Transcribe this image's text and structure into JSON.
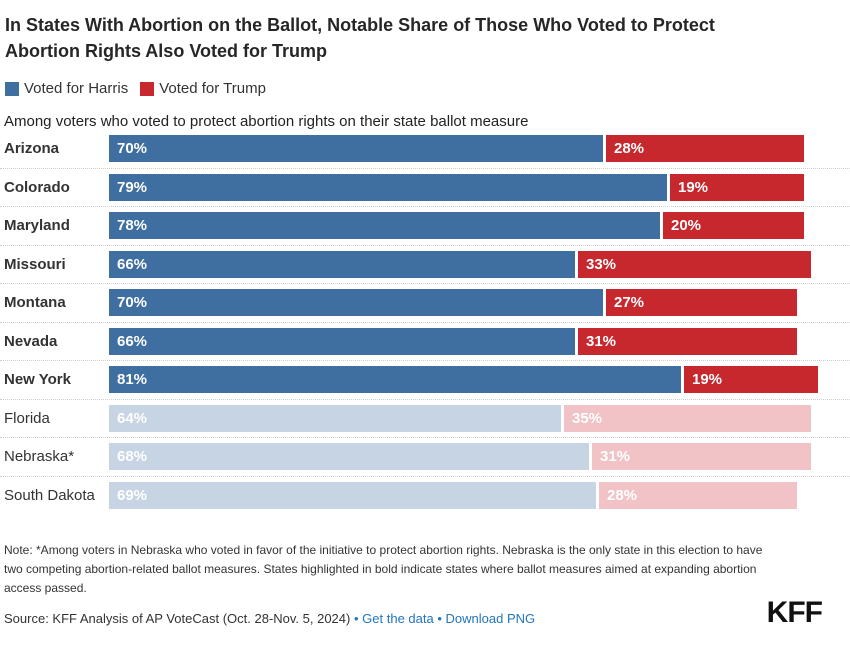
{
  "title": {
    "line1": "In States With Abortion on the Ballot, Notable Share of Those Who Voted to Protect",
    "line2": "Abortion Rights Also Voted for Trump"
  },
  "legend": {
    "items": [
      {
        "label": "Voted for Harris"
      },
      {
        "label": "Voted for Trump"
      }
    ]
  },
  "subtitle": "Among voters who voted to protect abortion rights on their state ballot measure",
  "colors": {
    "harris": "#3F6FA1",
    "trump": "#C7282E",
    "harris_muted": "#C6D4E4",
    "trump_muted": "#F1C3C6",
    "link": "#2176BD",
    "separator_line": "#cfcfcf"
  },
  "chart_data": {
    "type": "bar",
    "orientation": "horizontal",
    "stacked": true,
    "categories": [
      "Arizona",
      "Colorado",
      "Maryland",
      "Missouri",
      "Montana",
      "Nevada",
      "New York",
      "Florida",
      "Nebraska*",
      "South Dakota"
    ],
    "series": [
      {
        "name": "Voted for Harris",
        "color": "#3F6FA1",
        "muted_color": "#C6D4E4",
        "values": [
          70,
          79,
          78,
          66,
          70,
          66,
          81,
          64,
          68,
          69
        ]
      },
      {
        "name": "Voted for Trump",
        "color": "#C7282E",
        "muted_color": "#F1C3C6",
        "values": [
          28,
          19,
          20,
          33,
          27,
          31,
          19,
          35,
          31,
          28
        ]
      }
    ],
    "value_suffix": "%",
    "xlim": [
      0,
      100
    ],
    "legend_position": "top",
    "bold_categories": [
      "Arizona",
      "Colorado",
      "Maryland",
      "Missouri",
      "Montana",
      "Nevada",
      "New York"
    ],
    "muted_categories": [
      "Florida",
      "Nebraska*",
      "South Dakota"
    ],
    "value_labels_shown": true
  },
  "footer": {
    "note": "Note: *Among voters in Nebraska who voted in favor of the initiative to protect abortion rights. Nebraska is the only state in this election to have two competing abortion-related ballot measures. States highlighted in bold indicate states where ballot measures aimed at expanding abortion access passed.",
    "source": "Source: KFF Analysis of AP VoteCast (Oct. 28-Nov. 5, 2024)",
    "separator": "•",
    "links": [
      {
        "label": "Get the data"
      },
      {
        "label": "Download PNG"
      }
    ],
    "logo": "KFF"
  }
}
